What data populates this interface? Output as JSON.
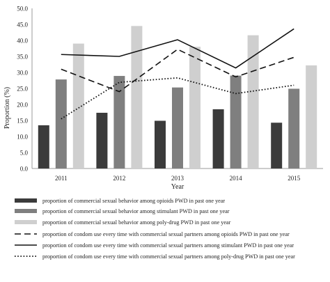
{
  "chart_data": {
    "type": "bar",
    "title": "",
    "xlabel": "Year",
    "ylabel": "Proportion (%)",
    "ylim": [
      0,
      50
    ],
    "yticks": [
      "0.0",
      "5.0",
      "10.0",
      "15.0",
      "20.0",
      "25.0",
      "30.0",
      "35.0",
      "40.0",
      "45.0",
      "50.0"
    ],
    "categories": [
      "2011",
      "2012",
      "2013",
      "2014",
      "2015"
    ],
    "grid": false,
    "legend_position": "bottom",
    "bar_series": [
      {
        "name": "proportion of commercial sexual behavior  among opioids PWD in past one year",
        "color": "#3b3b3b",
        "values": [
          13.5,
          17.4,
          14.9,
          18.5,
          14.3
        ]
      },
      {
        "name": "proportion of commercial sexual behavior among stimulant PWD in past one year",
        "color": "#7f7f7f",
        "values": [
          27.8,
          28.9,
          25.3,
          29.0,
          24.9
        ]
      },
      {
        "name": "proportion of commercial sexual behavior  among poly-drug  PWD in past one year",
        "color": "#cfcfcf",
        "values": [
          39.0,
          44.5,
          38.0,
          41.6,
          32.2
        ]
      }
    ],
    "line_series": [
      {
        "name": "proportion of condom use every time with commercial sexual partners  among opioids PWD in past one year",
        "color": "#111111",
        "dash": "dashed",
        "values": [
          31.0,
          24.0,
          37.2,
          28.6,
          34.7
        ]
      },
      {
        "name": "proportion of condom use every time with commercial sexual partners among stimulant PWD in past one year",
        "color": "#111111",
        "dash": "solid",
        "values": [
          35.6,
          35.0,
          40.2,
          31.4,
          43.6
        ]
      },
      {
        "name": "proportion of condom use every time with commercial sexual partners among poly-drug  PWD in past one year",
        "color": "#111111",
        "dash": "dotted",
        "values": [
          15.5,
          26.9,
          28.3,
          23.4,
          26.0
        ]
      }
    ]
  }
}
